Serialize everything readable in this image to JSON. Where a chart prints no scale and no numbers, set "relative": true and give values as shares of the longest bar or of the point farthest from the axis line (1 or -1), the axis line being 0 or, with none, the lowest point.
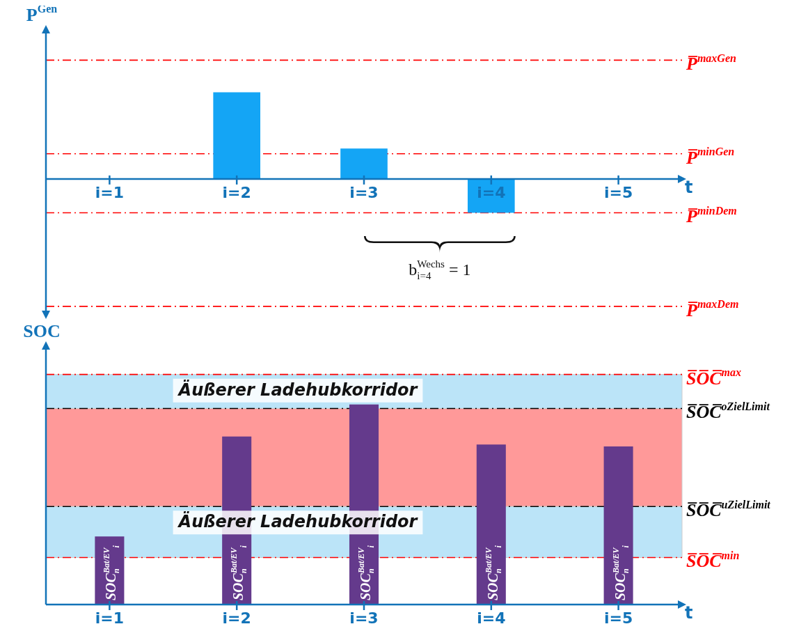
{
  "chart_data": [
    {
      "type": "bar",
      "relative": true,
      "categories": [
        "i=1",
        "i=2",
        "i=3",
        "i=4",
        "i=5"
      ],
      "values": [
        null,
        1,
        0.35,
        -0.39,
        null
      ],
      "color": "#14a5f5",
      "xlabel": "t",
      "ylabel": "P$^{Gen}$",
      "ref_lines": [
        {
          "axis": "y",
          "value": 1.37,
          "label": "P̅$^{maxGen}$",
          "color": "#ff0000",
          "line_style": "dashed"
        },
        {
          "axis": "y",
          "value": 0.29,
          "label": "P̅$^{minGen}$",
          "color": "#ff0000",
          "line_style": "dashed"
        },
        {
          "axis": "y",
          "value": -0.39,
          "label": "P̅$^{minDem}$",
          "color": "#ff0000",
          "line_style": "dashed"
        },
        {
          "axis": "y",
          "value": -1.47,
          "label": "P̅$^{maxDem}$",
          "color": "#ff0000",
          "line_style": "dashed"
        }
      ],
      "annotations": [
        "b$_{i=4}$$^{Wechs}$ = 1"
      ]
    },
    {
      "type": "bar",
      "relative": true,
      "categories": [
        "i=1",
        "i=2",
        "i=3",
        "i=4",
        "i=5"
      ],
      "values": [
        0.34,
        0.84,
        1,
        0.8,
        0.79
      ],
      "color": "#643a8c",
      "xlabel": "t",
      "ylabel": "SOC",
      "annotations": [
        "SOC$_{n}$$^{Bat/EV}$$_{i}$",
        "SOC$_{n}$$^{Bat/EV}$$_{i}$",
        "SOC$_{n}$$^{Bat/EV}$$_{i}$",
        "SOC$_{n}$$^{Bat/EV}$$_{i}$",
        "SOC$_{n}$$^{Bat/EV}$$_{i}$"
      ],
      "bands": [
        {
          "axis": "y",
          "from": 0.98,
          "to": 1.15,
          "label": "Äußerer Ladehubkorridor",
          "color": "#55bbee"
        },
        {
          "axis": "y",
          "from": 0.49,
          "to": 0.98,
          "color": "#ff0000"
        },
        {
          "axis": "y",
          "from": 0.235,
          "to": 0.49,
          "label": "Äußerer Ladehubkorridor",
          "color": "#55bbee"
        }
      ],
      "ref_lines": [
        {
          "axis": "y",
          "value": 1.15,
          "label": "S̅O̅C̅$^{max}$",
          "color": "#ff0000",
          "line_style": "dashed"
        },
        {
          "axis": "y",
          "value": 0.98,
          "label": "S̅O̅C̅$^{oZielLimit}$",
          "color": "#000000",
          "line_style": "dashed"
        },
        {
          "axis": "y",
          "value": 0.49,
          "label": "S̅O̅C̅$^{uZielLimit}$",
          "color": "#000000",
          "line_style": "dashed"
        },
        {
          "axis": "y",
          "value": 0.235,
          "label": "S̅O̅C̅$^{min}$",
          "color": "#ff0000",
          "line_style": "dashed"
        }
      ]
    }
  ]
}
